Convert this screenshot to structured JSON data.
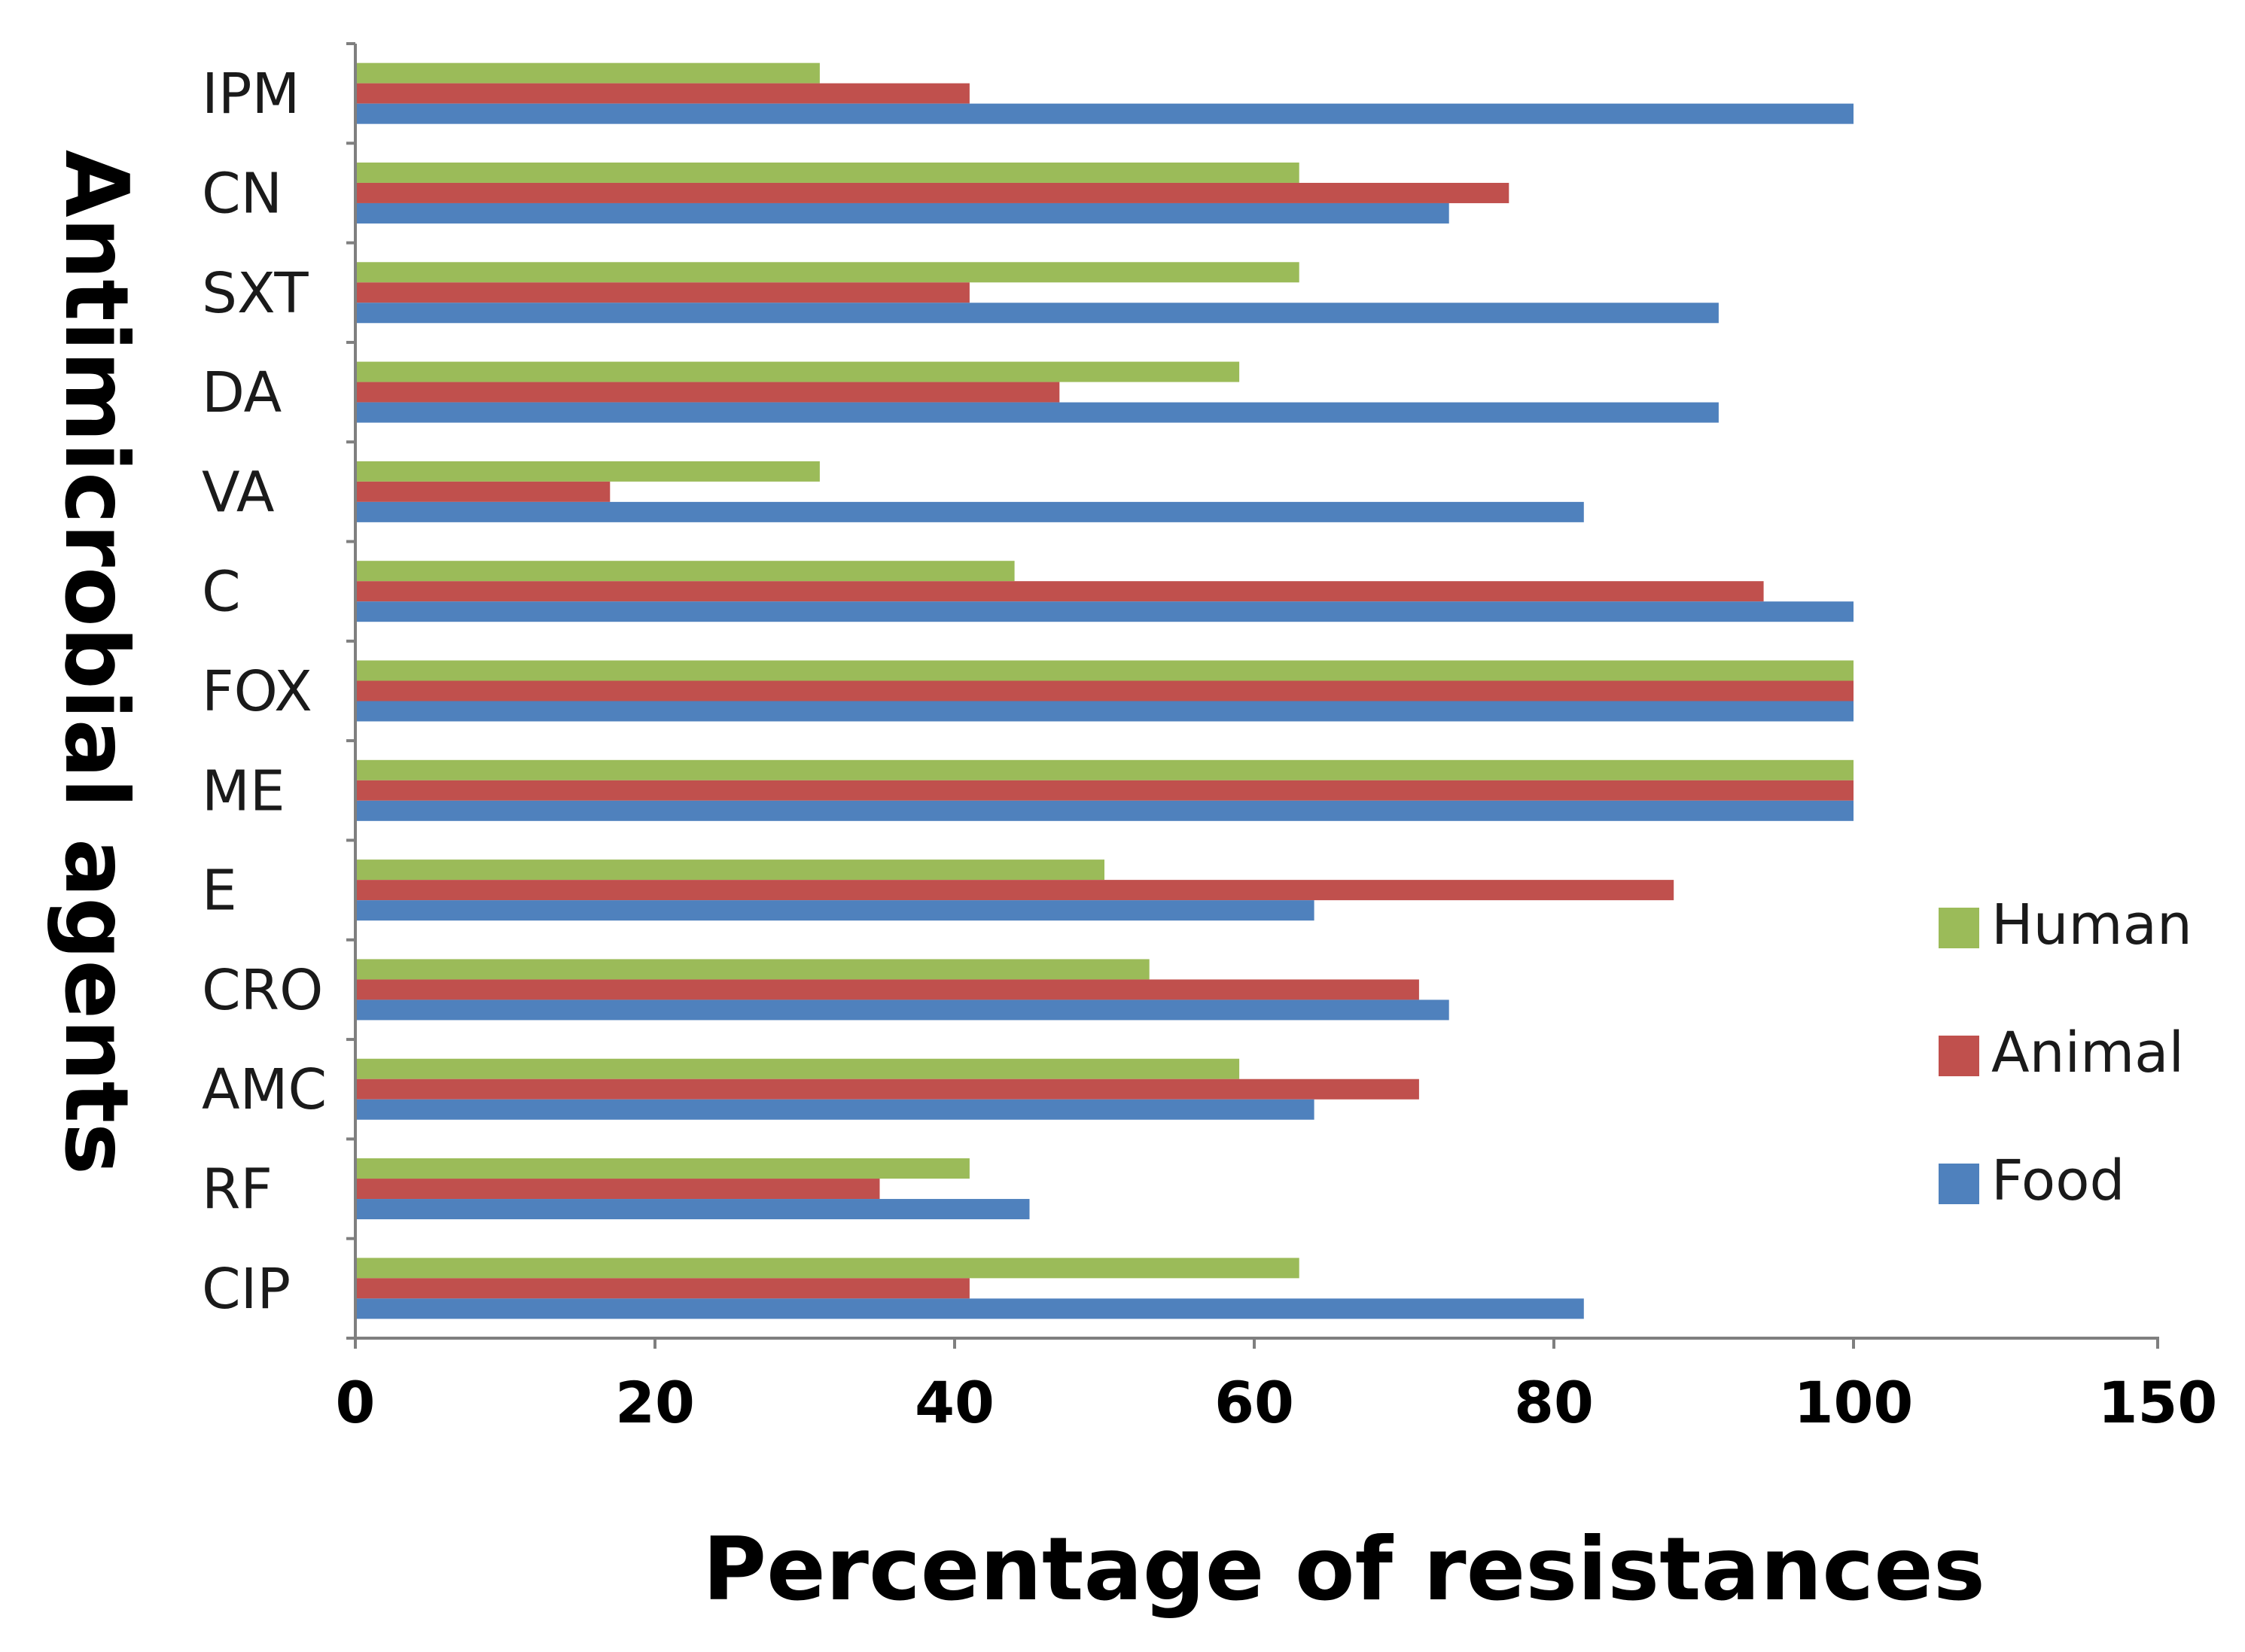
{
  "chart_data": {
    "type": "bar",
    "orientation": "horizontal",
    "title": "",
    "xlabel": "Percentage  of resistances",
    "ylabel": "Antimicrobial agents",
    "xlim": [
      0,
      150
    ],
    "x_ticks": [
      0,
      20,
      40,
      60,
      80,
      100,
      150
    ],
    "grid": false,
    "legend_position": "right",
    "categories": [
      "IPM",
      "CN",
      "SXT",
      "DA",
      "VA",
      "C",
      "FOX",
      "ME",
      "E",
      "CRO",
      "AMC",
      "RF",
      "CIP"
    ],
    "series": [
      {
        "name": "Human",
        "color": "#9bbb59",
        "values": [
          31,
          63,
          63,
          59,
          31,
          44,
          100,
          100,
          50,
          53,
          59,
          41,
          63
        ]
      },
      {
        "name": "Animal",
        "color": "#c0504d",
        "values": [
          41,
          77,
          41,
          47,
          17,
          94,
          100,
          100,
          88,
          71,
          71,
          35,
          41
        ]
      },
      {
        "name": "Food",
        "color": "#4f81bd",
        "values": [
          100,
          73,
          91,
          91,
          82,
          100,
          100,
          100,
          64,
          73,
          64,
          45,
          82
        ]
      }
    ]
  }
}
